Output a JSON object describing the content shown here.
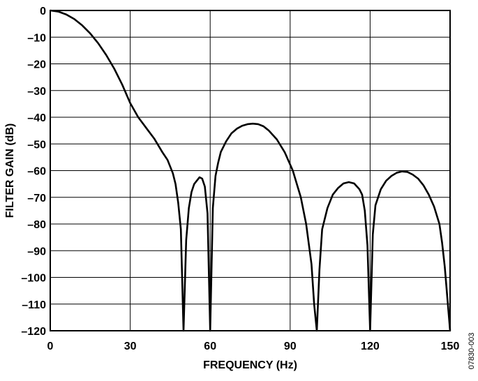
{
  "chart_data": {
    "type": "line",
    "xlabel": "FREQUENCY (Hz)",
    "ylabel": "FILTER GAIN (dB)",
    "xlim": [
      0,
      150
    ],
    "ylim": [
      -120,
      0
    ],
    "xticks": [
      0,
      30,
      60,
      90,
      120,
      150
    ],
    "yticks": [
      0,
      -10,
      -20,
      -30,
      -40,
      -50,
      -60,
      -70,
      -80,
      -90,
      -100,
      -110,
      -120
    ],
    "x_tick_labels": [
      "0",
      "30",
      "60",
      "90",
      "120",
      "150"
    ],
    "y_tick_labels": [
      "0",
      "–10",
      "–20",
      "–30",
      "–40",
      "–50",
      "–60",
      "–70",
      "–80",
      "–90",
      "–100",
      "–110",
      "–120"
    ],
    "grid": true,
    "figure_code": "07830-003",
    "series": [
      {
        "x": [
          0,
          3,
          6,
          9,
          12,
          15,
          18,
          21,
          24,
          27,
          30,
          33,
          36,
          39,
          42,
          44,
          46,
          47,
          48,
          49,
          50,
          51,
          52,
          53,
          54,
          56,
          57,
          58,
          59,
          60,
          61,
          62,
          63,
          64,
          66,
          68,
          70,
          72,
          74,
          76,
          78,
          80,
          82,
          85,
          88,
          91,
          94,
          96,
          98,
          99,
          100,
          101,
          102,
          104,
          106,
          108,
          110,
          112,
          114,
          116,
          117,
          118,
          119,
          120,
          121,
          122,
          124,
          126,
          128,
          130,
          132,
          134,
          136,
          138,
          140,
          142,
          144,
          146,
          147,
          148,
          149,
          150
        ],
        "y": [
          0,
          -0.4,
          -1.5,
          -3.2,
          -5.6,
          -8.6,
          -12.3,
          -16.7,
          -21.8,
          -27.8,
          -34.7,
          -40,
          -44,
          -48,
          -53,
          -56,
          -61,
          -65,
          -72,
          -82,
          -120,
          -86,
          -74,
          -68,
          -65,
          -62.5,
          -63,
          -66,
          -76,
          -120,
          -74,
          -62,
          -57,
          -53,
          -49,
          -46,
          -44.3,
          -43.2,
          -42.6,
          -42.4,
          -42.6,
          -43.4,
          -45,
          -48.3,
          -53.2,
          -60,
          -70,
          -80,
          -95,
          -110,
          -120,
          -97,
          -82,
          -74,
          -69,
          -66.5,
          -64.8,
          -64.3,
          -64.8,
          -67,
          -69,
          -75,
          -88,
          -120,
          -84,
          -73,
          -67,
          -63.8,
          -62,
          -60.8,
          -60.3,
          -60.5,
          -61.5,
          -63,
          -65.5,
          -69,
          -73.5,
          -80,
          -87,
          -96,
          -108,
          -120
        ]
      }
    ]
  }
}
